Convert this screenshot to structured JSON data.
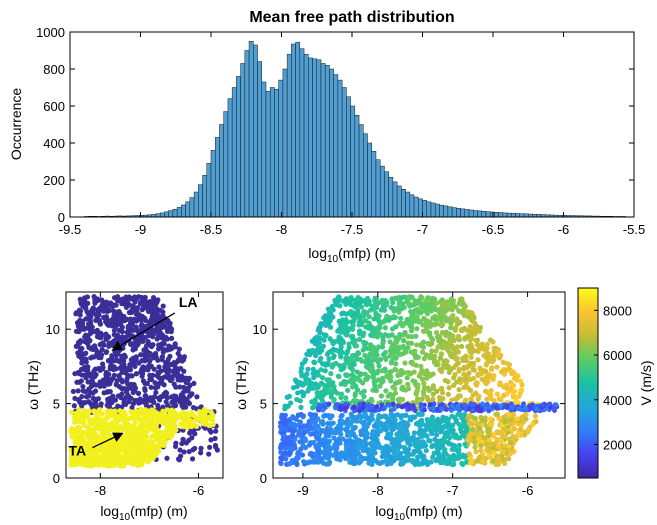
{
  "chart_data": [
    {
      "type": "bar",
      "title": "Mean free path distribution",
      "xlabel_main": "log",
      "xlabel_sub": "10",
      "xlabel_rest": "(mfp) (m)",
      "ylabel": "Occurrence",
      "xlim": [
        -9.5,
        -5.5
      ],
      "ylim": [
        0,
        1000
      ],
      "xticks": [
        -9.5,
        -9,
        -8.5,
        -8,
        -7.5,
        -7,
        -6.5,
        -6,
        -5.5
      ],
      "xtick_labels": [
        "-9.5",
        "-9",
        "-8.5",
        "-8",
        "-7.5",
        "-7",
        "-6.5",
        "-6",
        "-5.5"
      ],
      "yticks": [
        0,
        200,
        400,
        600,
        800,
        1000
      ],
      "ytick_labels": [
        "0",
        "200",
        "400",
        "600",
        "800",
        "1000"
      ],
      "bar_color": "#4f9fd4",
      "bin_start": -9.4,
      "bin_width": 0.03,
      "values": [
        3,
        4,
        4,
        3,
        4,
        5,
        4,
        5,
        6,
        5,
        6,
        7,
        8,
        9,
        10,
        12,
        14,
        18,
        22,
        28,
        35,
        42,
        52,
        65,
        82,
        105,
        135,
        175,
        225,
        290,
        360,
        430,
        500,
        570,
        640,
        700,
        760,
        830,
        900,
        950,
        930,
        840,
        730,
        680,
        700,
        690,
        740,
        800,
        880,
        935,
        945,
        910,
        880,
        860,
        855,
        850,
        830,
        820,
        800,
        770,
        740,
        700,
        650,
        600,
        550,
        500,
        450,
        400,
        355,
        310,
        275,
        245,
        215,
        190,
        168,
        150,
        135,
        120,
        108,
        98,
        90,
        82,
        76,
        70,
        64,
        60,
        55,
        51,
        47,
        44,
        41,
        38,
        35,
        33,
        31,
        29,
        27,
        25,
        24,
        22,
        21,
        20,
        19,
        18,
        17,
        16,
        15,
        14,
        13,
        12,
        11,
        10,
        9,
        9,
        8,
        8,
        7,
        7,
        6,
        6,
        5,
        5,
        4,
        4,
        4,
        3,
        3,
        3
      ]
    },
    {
      "type": "scatter",
      "xlabel_main": "log",
      "xlabel_sub": "10",
      "xlabel_rest": "(mfp) (m)",
      "ylabel": "ω (THz)",
      "xlim": [
        -8.7,
        -5.5
      ],
      "ylim": [
        0,
        12.5
      ],
      "xticks": [
        -8,
        -6
      ],
      "xtick_labels": [
        "-8",
        "-6"
      ],
      "yticks": [
        0,
        5,
        10
      ],
      "ytick_labels": [
        "0",
        "5",
        "10"
      ],
      "series": [
        {
          "name": "LA",
          "color": "#3b2e98",
          "omega_range": [
            4.4,
            12.2
          ],
          "mfp_left_top": -8.45,
          "mfp_right_top": -6.8,
          "mfp_left_bottom": -8.5,
          "mfp_right_bottom": -5.9
        },
        {
          "name": "TA",
          "color": "#f2f01e",
          "omega_range": [
            0.8,
            4.6
          ],
          "mfp_left": -8.6,
          "mfp_right": -5.7
        }
      ],
      "annotations": [
        {
          "text": "LA",
          "text_at": [
            -6.4,
            11.5
          ],
          "arrow_to": [
            -7.75,
            8.6
          ]
        },
        {
          "text": "TA",
          "text_at": [
            -8.65,
            1.5
          ],
          "arrow_to": [
            -7.55,
            3.0
          ]
        }
      ]
    },
    {
      "type": "scatter",
      "xlabel_main": "log",
      "xlabel_sub": "10",
      "xlabel_rest": "(mfp) (m)",
      "ylabel": "ω (THz)",
      "xlim": [
        -9.4,
        -5.5
      ],
      "ylim": [
        0,
        12.5
      ],
      "xticks": [
        -9,
        -8,
        -7,
        -6
      ],
      "xtick_labels": [
        "-9",
        "-8",
        "-7",
        "-6"
      ],
      "yticks": [
        0,
        5,
        10
      ],
      "ytick_labels": [
        "0",
        "5",
        "10"
      ],
      "colorbar": {
        "label": "V (m/s)",
        "range": [
          500,
          9000
        ],
        "ticks": [
          2000,
          4000,
          6000,
          8000
        ],
        "tick_labels": [
          "2000",
          "4000",
          "6000",
          "8000"
        ],
        "colormap": [
          "#3e26a8",
          "#4743f0",
          "#2f80f8",
          "#22a7d8",
          "#1ac2a3",
          "#5ccc63",
          "#c4bd35",
          "#fcc332",
          "#f9fb15"
        ]
      }
    }
  ]
}
